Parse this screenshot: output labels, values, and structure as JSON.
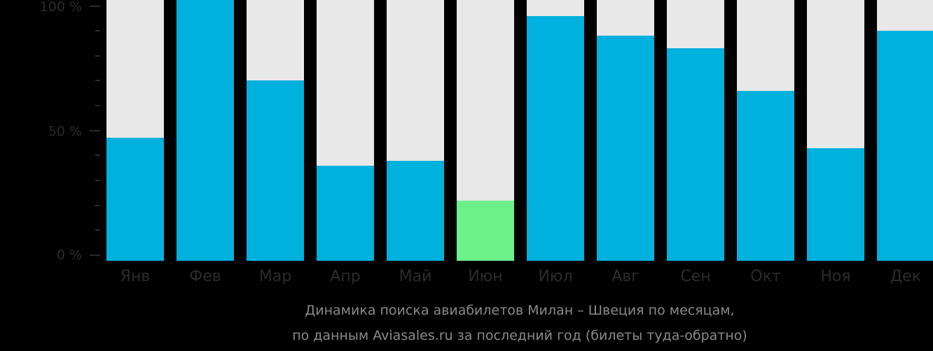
{
  "chart_data": {
    "type": "bar",
    "title": "Динамика поиска авиабилетов Милан – Швеция по месяцам, по данным Aviasales.ru за последний год (билеты туда-обратно)",
    "xlabel": "",
    "ylabel": "",
    "categories": [
      "Янв",
      "Фев",
      "Мар",
      "Апр",
      "Май",
      "Июн",
      "Июл",
      "Авг",
      "Сен",
      "Окт",
      "Ноя",
      "Дек"
    ],
    "values": [
      47,
      100,
      70,
      36,
      38,
      22,
      96,
      88,
      83,
      66,
      43,
      90
    ],
    "ylim": [
      0,
      100
    ],
    "yticks": [
      "0 %",
      "50 %",
      "100 %"
    ],
    "highlight_index": 5,
    "grid": false,
    "legend": null
  },
  "colors": {
    "background": "#000000",
    "bar": "#00b0dd",
    "bar_highlight": "#6cf08a",
    "bar_track": "#e8e8e8",
    "axis_text": "#2b2b2b",
    "caption_text": "#8a8a8a"
  },
  "axis": {
    "y_labels": {
      "top": "100 %",
      "mid": "50 %",
      "bottom": "0 %"
    }
  },
  "caption": {
    "line1": "Динамика поиска авиабилетов Милан – Швеция по месяцам,",
    "line2": "по данным Aviasales.ru за последний год (билеты туда-обратно)"
  }
}
